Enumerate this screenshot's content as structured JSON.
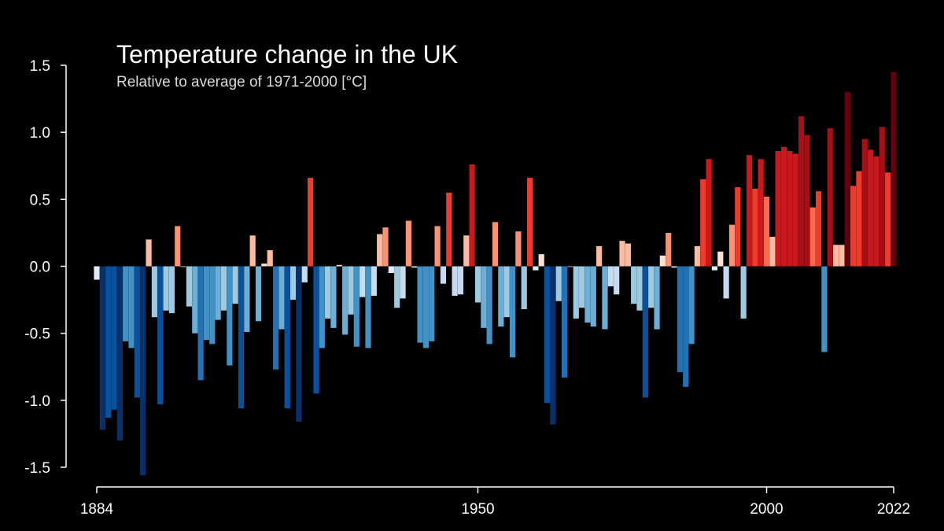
{
  "chart_data": {
    "type": "bar",
    "title": "Temperature change in the UK",
    "subtitle": "Relative to average of 1971-2000  [°C]",
    "xlabel": "",
    "ylabel": "",
    "x_start": 1884,
    "x_end": 2022,
    "ylim": [
      -1.5,
      1.5
    ],
    "y_ticks": [
      "1.5",
      "1.0",
      "0.5",
      "0.0",
      "-0.5",
      "-1.0",
      "-1.5"
    ],
    "y_tick_values": [
      1.5,
      1.0,
      0.5,
      0.0,
      -0.5,
      -1.0,
      -1.5
    ],
    "x_ticks": [
      "1884",
      "1950",
      "2000",
      "2022"
    ],
    "x_tick_values": [
      1884,
      1950,
      2000,
      2022
    ],
    "grid": false,
    "values": [
      -0.1,
      -1.22,
      -1.13,
      -1.07,
      -1.3,
      -0.56,
      -0.61,
      -0.98,
      -1.56,
      0.2,
      -0.38,
      -1.03,
      -0.33,
      -0.35,
      0.3,
      0.0,
      -0.3,
      -0.5,
      -0.85,
      -0.55,
      -0.58,
      -0.4,
      -0.33,
      -0.74,
      -0.28,
      -1.06,
      -0.49,
      0.23,
      -0.41,
      0.02,
      0.12,
      -0.77,
      -0.47,
      -1.06,
      -0.25,
      -1.16,
      -0.12,
      0.66,
      -0.95,
      -0.61,
      -0.39,
      -0.46,
      0.01,
      -0.51,
      -0.36,
      -0.6,
      -0.23,
      -0.61,
      -0.22,
      0.24,
      0.29,
      -0.05,
      -0.31,
      -0.24,
      0.34,
      -0.01,
      -0.57,
      -0.61,
      -0.56,
      0.3,
      -0.13,
      0.55,
      -0.22,
      -0.21,
      0.23,
      0.76,
      -0.27,
      -0.46,
      -0.58,
      0.33,
      -0.45,
      -0.38,
      -0.68,
      0.26,
      -0.32,
      0.66,
      -0.03,
      0.09,
      -1.02,
      -1.18,
      -0.26,
      -0.83,
      0.0,
      -0.39,
      -0.31,
      -0.42,
      -0.45,
      0.15,
      -0.47,
      -0.15,
      -0.21,
      0.19,
      0.17,
      -0.28,
      -0.33,
      -0.98,
      -0.31,
      -0.47,
      0.08,
      0.25,
      -0.01,
      -0.79,
      -0.9,
      -0.58,
      0.15,
      0.65,
      0.8,
      -0.03,
      0.11,
      -0.24,
      0.31,
      0.59,
      -0.39,
      0.83,
      0.58,
      0.8,
      0.52,
      0.22,
      0.86,
      0.89,
      0.86,
      0.84,
      1.12,
      0.98,
      0.44,
      0.56,
      -0.64,
      1.03,
      0.16,
      0.16,
      1.3,
      0.6,
      0.71,
      0.95,
      0.87,
      0.82,
      1.04,
      0.7,
      1.45
    ]
  }
}
